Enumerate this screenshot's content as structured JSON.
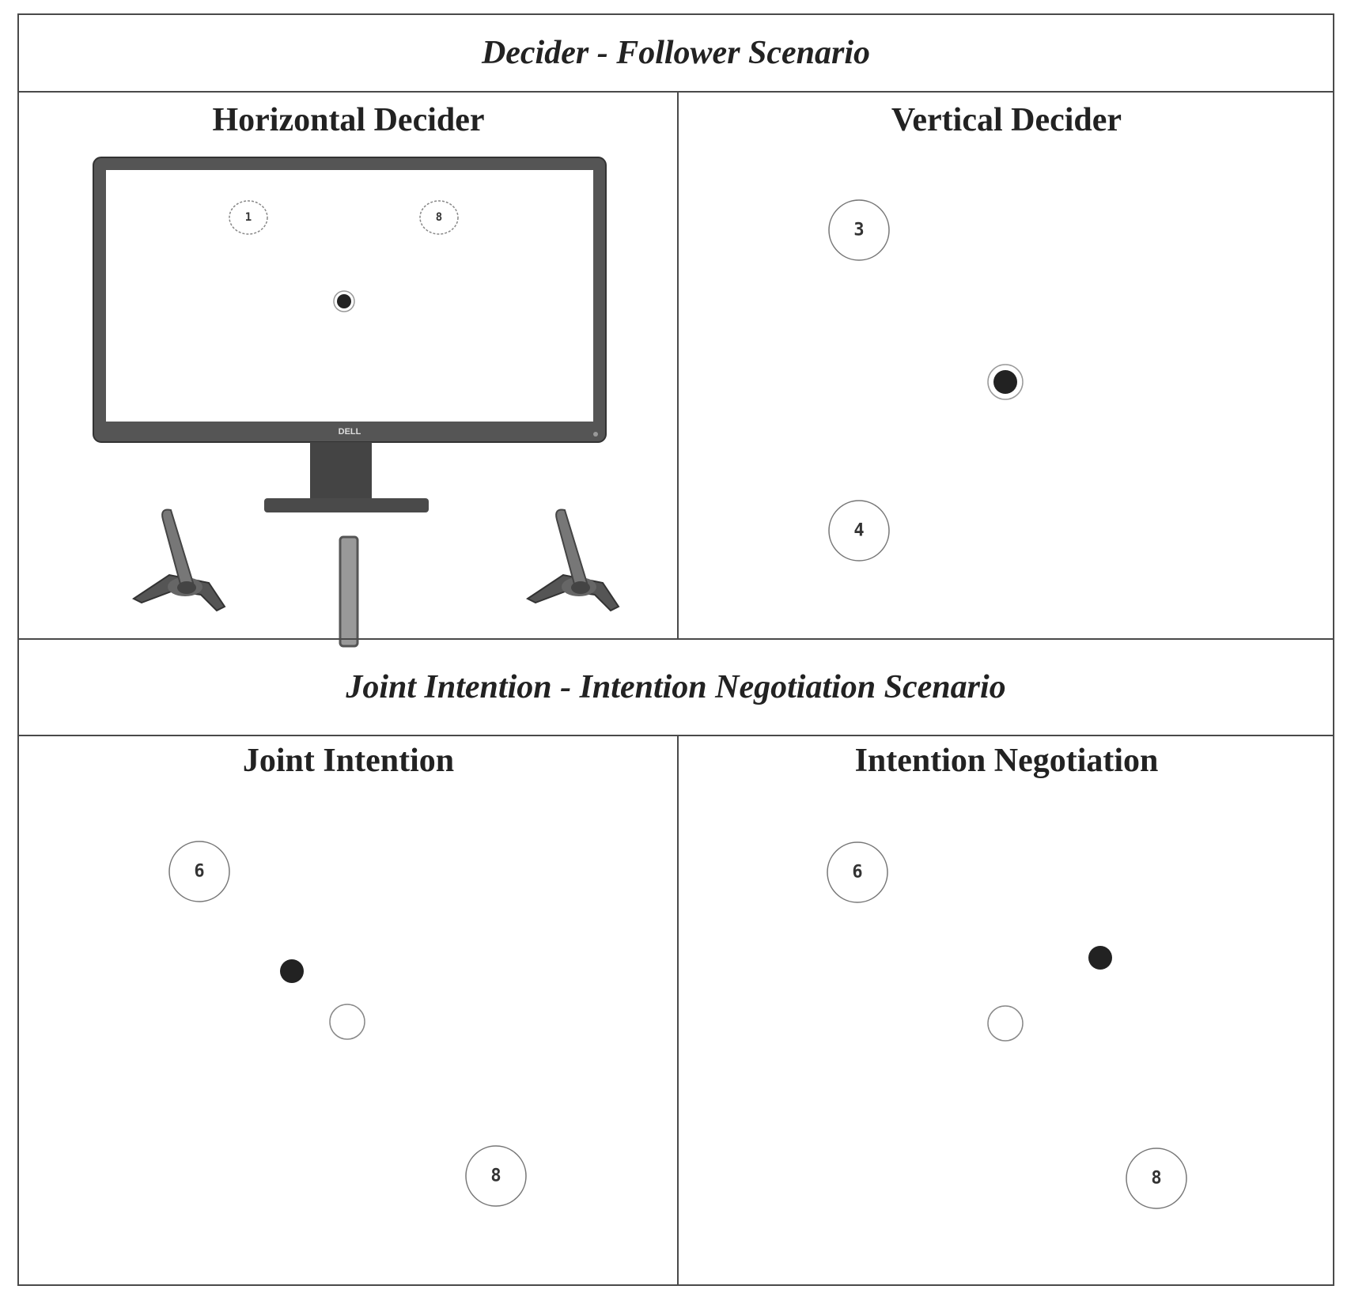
{
  "sections": [
    {
      "title": "Decider - Follower Scenario",
      "panels": [
        {
          "title": "Horizontal Decider",
          "targets": [
            "1",
            "8"
          ],
          "monitor_brand": "DELL"
        },
        {
          "title": "Vertical Decider",
          "targets": [
            "3",
            "4"
          ]
        }
      ]
    },
    {
      "title": "Joint Intention - Intention Negotiation Scenario",
      "panels": [
        {
          "title": "Joint Intention",
          "targets": [
            "6",
            "8"
          ]
        },
        {
          "title": "Intention Negotiation",
          "targets": [
            "6",
            "8"
          ]
        }
      ]
    }
  ],
  "colors": {
    "border": "#4a4a4a",
    "cursor": "#222222",
    "monitor_bezel": "#505050"
  },
  "icons": [
    "monitor-icon",
    "joystick-icon",
    "slider-bar-icon",
    "target-circle-icon",
    "cursor-dot-icon"
  ]
}
